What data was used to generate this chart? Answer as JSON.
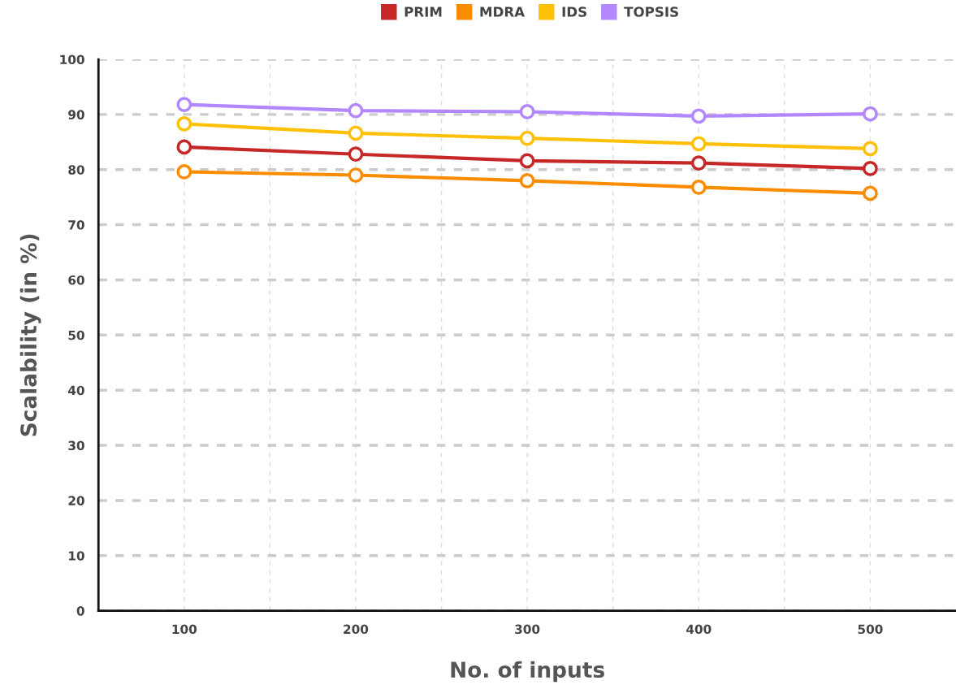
{
  "chart_data": {
    "type": "line",
    "xlabel": "No. of inputs",
    "ylabel": "Scalability (in %)",
    "x": [
      100,
      200,
      300,
      400,
      500
    ],
    "series": [
      {
        "name": "PRIM",
        "color": "#c62828",
        "values": [
          84.1,
          82.8,
          81.6,
          81.2,
          80.2
        ]
      },
      {
        "name": "MDRA",
        "color": "#fb8c00",
        "values": [
          79.6,
          79.0,
          78.0,
          76.8,
          75.7
        ]
      },
      {
        "name": "IDS",
        "color": "#ffc107",
        "values": [
          88.3,
          86.6,
          85.7,
          84.7,
          83.8
        ]
      },
      {
        "name": "TOPSIS",
        "color": "#b388ff",
        "values": [
          91.8,
          90.7,
          90.5,
          89.7,
          90.1
        ]
      }
    ],
    "xlim": [
      50,
      550
    ],
    "xticks": [
      100,
      {
        "value": 150,
        "label": null
      },
      200,
      {
        "value": 250,
        "label": null
      },
      300,
      {
        "value": 350,
        "label": null
      },
      400,
      {
        "value": 450,
        "label": null
      },
      500
    ],
    "ylim": [
      0,
      100
    ],
    "yticks": [
      0,
      10,
      20,
      30,
      40,
      50,
      60,
      70,
      80,
      90,
      100
    ],
    "grid": true,
    "legend": "top",
    "marker": "circle",
    "line_style": "solid"
  }
}
